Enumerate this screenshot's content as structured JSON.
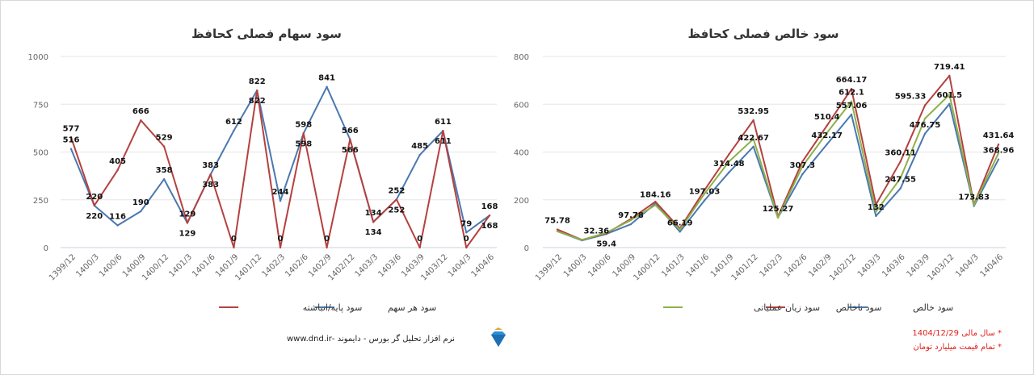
{
  "chart_data": [
    {
      "type": "line",
      "title": "سود سهام فصلی کحافظ",
      "categories": [
        "1399/12",
        "1400/3",
        "1400/6",
        "1400/9",
        "1400/12",
        "1401/3",
        "1401/6",
        "1401/9",
        "1401/12",
        "1402/3",
        "1402/6",
        "1402/9",
        "1402/12",
        "1403/3",
        "1403/6",
        "1403/9",
        "1403/12",
        "1404/3",
        "1404/6"
      ],
      "ylim": [
        0,
        1000
      ],
      "yticks": [
        0,
        250,
        500,
        750,
        1000
      ],
      "grid": true,
      "legend": "bottom",
      "series": [
        {
          "name": "سود هر سهم",
          "color": "#4a78b0",
          "values": [
            516,
            220,
            116,
            190,
            358,
            129,
            383,
            612,
            822,
            244,
            598,
            841,
            566,
            134,
            252,
            485,
            611,
            79,
            168
          ]
        },
        {
          "name": "سود پایه/انباشته",
          "color": "#b5413f",
          "values": [
            577,
            220,
            405,
            666,
            529,
            129,
            383,
            0,
            822,
            0,
            598,
            0,
            566,
            134,
            252,
            0,
            611,
            0,
            168
          ]
        }
      ]
    },
    {
      "type": "line",
      "title": "سود خالص فصلی کحافظ",
      "categories": [
        "1399/12",
        "1400/3",
        "1400/6",
        "1400/9",
        "1400/12",
        "1401/3",
        "1401/6",
        "1401/9",
        "1401/12",
        "1402/3",
        "1402/6",
        "1402/9",
        "1402/12",
        "1403/3",
        "1403/6",
        "1403/9",
        "1403/12",
        "1404/3",
        "1404/6"
      ],
      "ylim": [
        0,
        800
      ],
      "yticks": [
        0,
        200,
        400,
        600,
        800
      ],
      "grid": true,
      "legend": "bottom",
      "series": [
        {
          "name": "سود خالص",
          "color": "#4a78b0",
          "values": [
            68,
            30,
            57,
            97.78,
            184.16,
            66.19,
            197.03,
            314.48,
            422.67,
            125.27,
            307.3,
            432.17,
            557.06,
            132,
            247.55,
            476.75,
            601.5,
            173.83,
            368.96
          ],
          "labeled": [
            false,
            false,
            false,
            true,
            true,
            true,
            true,
            true,
            true,
            true,
            true,
            true,
            true,
            true,
            true,
            true,
            true,
            true,
            true
          ]
        },
        {
          "name": "سود ناخالص",
          "color": "#b5413f",
          "values": [
            75.78,
            32.36,
            59.4,
            120,
            192,
            80,
            240,
            390,
            532.95,
            130,
            360,
            510.4,
            664.17,
            180,
            360.11,
            595.33,
            719.41,
            180,
            431.64
          ],
          "labeled": [
            true,
            true,
            true,
            false,
            false,
            false,
            false,
            false,
            true,
            false,
            false,
            true,
            true,
            false,
            true,
            true,
            true,
            false,
            true
          ]
        },
        {
          "name": "سود زیان عملیاتی",
          "color": "#8fb04a",
          "values": [
            68,
            32,
            62,
            115,
            178,
            75,
            225,
            360,
            455,
            125,
            340,
            480,
            612.1,
            150,
            290,
            540,
            640,
            178,
            395
          ],
          "labeled": [
            false,
            false,
            false,
            false,
            false,
            false,
            false,
            false,
            false,
            false,
            false,
            false,
            true,
            false,
            false,
            false,
            false,
            false,
            false
          ]
        }
      ]
    }
  ],
  "footer": {
    "software": "نرم افزار تحلیل گر بورس - دایموند -www.dnd.ir",
    "notes": [
      "* سال مالی 1404/12/29",
      "* تمام قیمت میلیارد تومان"
    ]
  }
}
